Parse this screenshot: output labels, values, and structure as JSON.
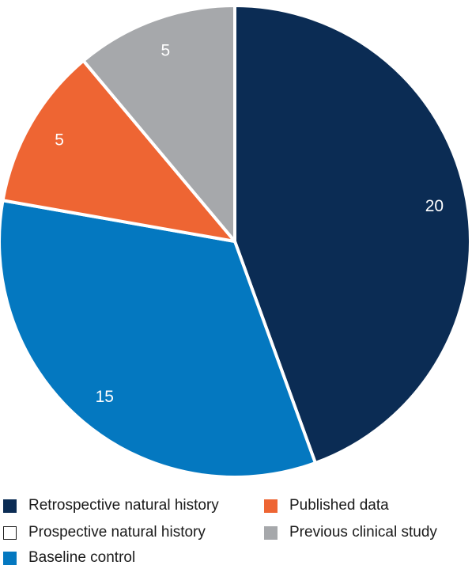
{
  "chart_data": {
    "type": "pie",
    "title": "",
    "start_angle_deg": 0,
    "direction": "clockwise",
    "slices": [
      {
        "label": "Retrospective natural history",
        "value": 20,
        "color": "#0b2c54",
        "label_text": "20"
      },
      {
        "label": "Baseline control",
        "value": 15,
        "color": "#0478c0",
        "label_text": "15"
      },
      {
        "label": "Published data",
        "value": 5,
        "color": "#ee6533",
        "label_text": "5"
      },
      {
        "label": "Previous clinical study",
        "value": 5,
        "color": "#a6a8ab",
        "label_text": "5"
      },
      {
        "label": "Prospective natural history",
        "value": 0,
        "color": "#ffffff",
        "label_text": ""
      }
    ],
    "legend": {
      "position": "bottom",
      "items": [
        {
          "label": "Retrospective natural history",
          "color": "#0b2c54",
          "bordered": false
        },
        {
          "label": "Published data",
          "color": "#ee6533",
          "bordered": false
        },
        {
          "label": "Prospective natural history",
          "color": "#ffffff",
          "bordered": true
        },
        {
          "label": "Previous clinical study",
          "color": "#a6a8ab",
          "bordered": false
        },
        {
          "label": "Baseline control",
          "color": "#0478c0",
          "bordered": false
        }
      ]
    }
  }
}
